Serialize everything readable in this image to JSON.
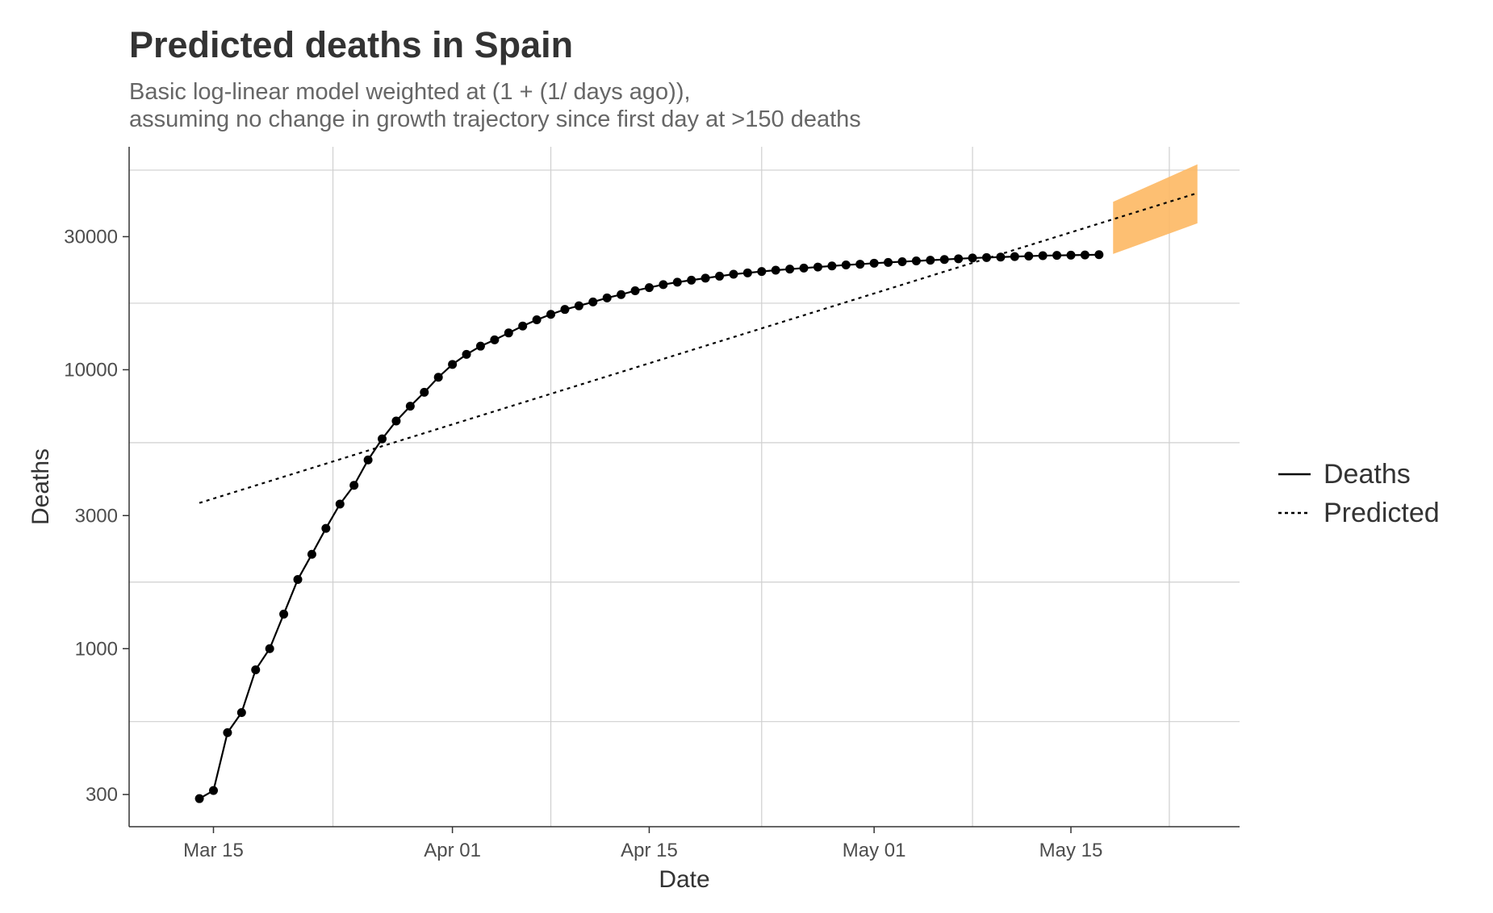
{
  "chart_data": {
    "type": "line",
    "title": "Predicted deaths in Spain",
    "subtitle_lines": [
      "Basic log-linear model weighted at (1 + (1/ days ago)),",
      "assuming no change in growth trajectory since first day at >150 deaths"
    ],
    "xlabel": "Date",
    "ylabel": "Deaths",
    "y_scale": "log10",
    "xlim": [
      "2020-03-09",
      "2020-05-27"
    ],
    "ylim": [
      230,
      63000
    ],
    "x_ticks": [
      "2020-03-15",
      "2020-04-01",
      "2020-04-15",
      "2020-05-01",
      "2020-05-15"
    ],
    "x_tick_labels": [
      "Mar 15",
      "Apr 01",
      "Apr 15",
      "May 01",
      "May 15"
    ],
    "y_ticks": [
      300,
      1000,
      3000,
      10000,
      30000
    ],
    "y_tick_labels": [
      "300",
      "1000",
      "3000",
      "10000",
      "30000"
    ],
    "grid": true,
    "legend_position": "right",
    "legend": [
      {
        "label": "Deaths",
        "style": "solid"
      },
      {
        "label": "Predicted",
        "style": "dashed"
      }
    ],
    "series": [
      {
        "name": "Deaths",
        "style": "solid-with-points",
        "color": "#000000",
        "x": [
          "2020-03-14",
          "2020-03-15",
          "2020-03-16",
          "2020-03-17",
          "2020-03-18",
          "2020-03-19",
          "2020-03-20",
          "2020-03-21",
          "2020-03-22",
          "2020-03-23",
          "2020-03-24",
          "2020-03-25",
          "2020-03-26",
          "2020-03-27",
          "2020-03-28",
          "2020-03-29",
          "2020-03-30",
          "2020-03-31",
          "2020-04-01",
          "2020-04-02",
          "2020-04-03",
          "2020-04-04",
          "2020-04-05",
          "2020-04-06",
          "2020-04-07",
          "2020-04-08",
          "2020-04-09",
          "2020-04-10",
          "2020-04-11",
          "2020-04-12",
          "2020-04-13",
          "2020-04-14",
          "2020-04-15",
          "2020-04-16",
          "2020-04-17",
          "2020-04-18",
          "2020-04-19",
          "2020-04-20",
          "2020-04-21",
          "2020-04-22",
          "2020-04-23",
          "2020-04-24",
          "2020-04-25",
          "2020-04-26",
          "2020-04-27",
          "2020-04-28",
          "2020-04-29",
          "2020-04-30",
          "2020-05-01",
          "2020-05-02",
          "2020-05-03",
          "2020-05-04",
          "2020-05-05",
          "2020-05-06",
          "2020-05-07",
          "2020-05-08",
          "2020-05-09",
          "2020-05-10",
          "2020-05-11",
          "2020-05-12",
          "2020-05-13",
          "2020-05-14",
          "2020-05-15",
          "2020-05-16",
          "2020-05-17"
        ],
        "values": [
          290,
          310,
          500,
          590,
          840,
          1000,
          1330,
          1770,
          2180,
          2700,
          3300,
          3850,
          4750,
          5650,
          6550,
          7400,
          8300,
          9400,
          10450,
          11350,
          12150,
          12800,
          13550,
          14350,
          15100,
          15800,
          16450,
          16950,
          17500,
          18100,
          18600,
          19200,
          19700,
          20200,
          20600,
          20950,
          21300,
          21650,
          22000,
          22250,
          22500,
          22750,
          22950,
          23150,
          23350,
          23550,
          23750,
          23900,
          24100,
          24250,
          24400,
          24550,
          24700,
          24850,
          25000,
          25150,
          25250,
          25350,
          25450,
          25550,
          25650,
          25700,
          25750,
          25800,
          25850
        ]
      },
      {
        "name": "Predicted",
        "style": "dashed",
        "color": "#000000",
        "x": [
          "2020-03-14",
          "2020-05-24"
        ],
        "values": [
          3330,
          43000
        ]
      }
    ],
    "prediction_interval": {
      "color": "#FDB863",
      "x": [
        "2020-05-18",
        "2020-05-24"
      ],
      "lower": [
        26000,
        33500
      ],
      "upper": [
        40000,
        54500
      ]
    }
  }
}
